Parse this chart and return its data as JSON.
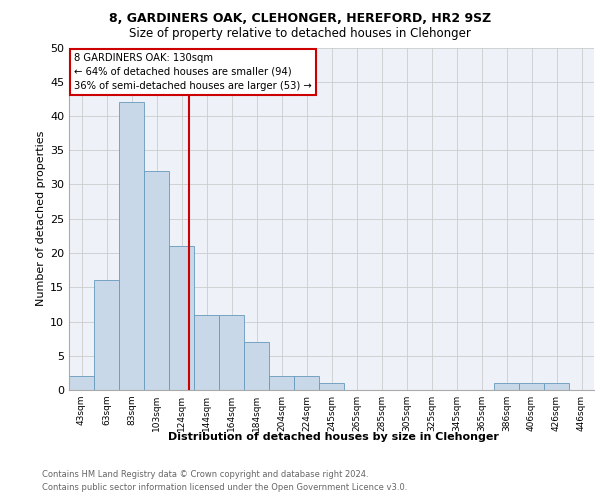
{
  "title1": "8, GARDINERS OAK, CLEHONGER, HEREFORD, HR2 9SZ",
  "title2": "Size of property relative to detached houses in Clehonger",
  "xlabel": "Distribution of detached houses by size in Clehonger",
  "ylabel": "Number of detached properties",
  "footnote1": "Contains HM Land Registry data © Crown copyright and database right 2024.",
  "footnote2": "Contains public sector information licensed under the Open Government Licence v3.0.",
  "bin_labels": [
    "43sqm",
    "63sqm",
    "83sqm",
    "103sqm",
    "124sqm",
    "144sqm",
    "164sqm",
    "184sqm",
    "204sqm",
    "224sqm",
    "245sqm",
    "265sqm",
    "285sqm",
    "305sqm",
    "325sqm",
    "345sqm",
    "365sqm",
    "386sqm",
    "406sqm",
    "426sqm",
    "446sqm"
  ],
  "bar_values": [
    2,
    16,
    42,
    32,
    21,
    11,
    11,
    7,
    2,
    2,
    1,
    0,
    0,
    0,
    0,
    0,
    0,
    1,
    1,
    1,
    0
  ],
  "bar_color": "#c8d8e8",
  "bar_edge_color": "#6699bb",
  "grid_color": "#cccccc",
  "bg_color": "#eef2f8",
  "property_line_label": "8 GARDINERS OAK: 130sqm",
  "annotation_line1": "← 64% of detached houses are smaller (94)",
  "annotation_line2": "36% of semi-detached houses are larger (53) →",
  "annotation_box_color": "#ffffff",
  "annotation_box_edge": "#cc0000",
  "vline_color": "#cc0000",
  "vline_x_index": 4.3,
  "ylim": [
    0,
    50
  ],
  "yticks": [
    0,
    5,
    10,
    15,
    20,
    25,
    30,
    35,
    40,
    45,
    50
  ]
}
